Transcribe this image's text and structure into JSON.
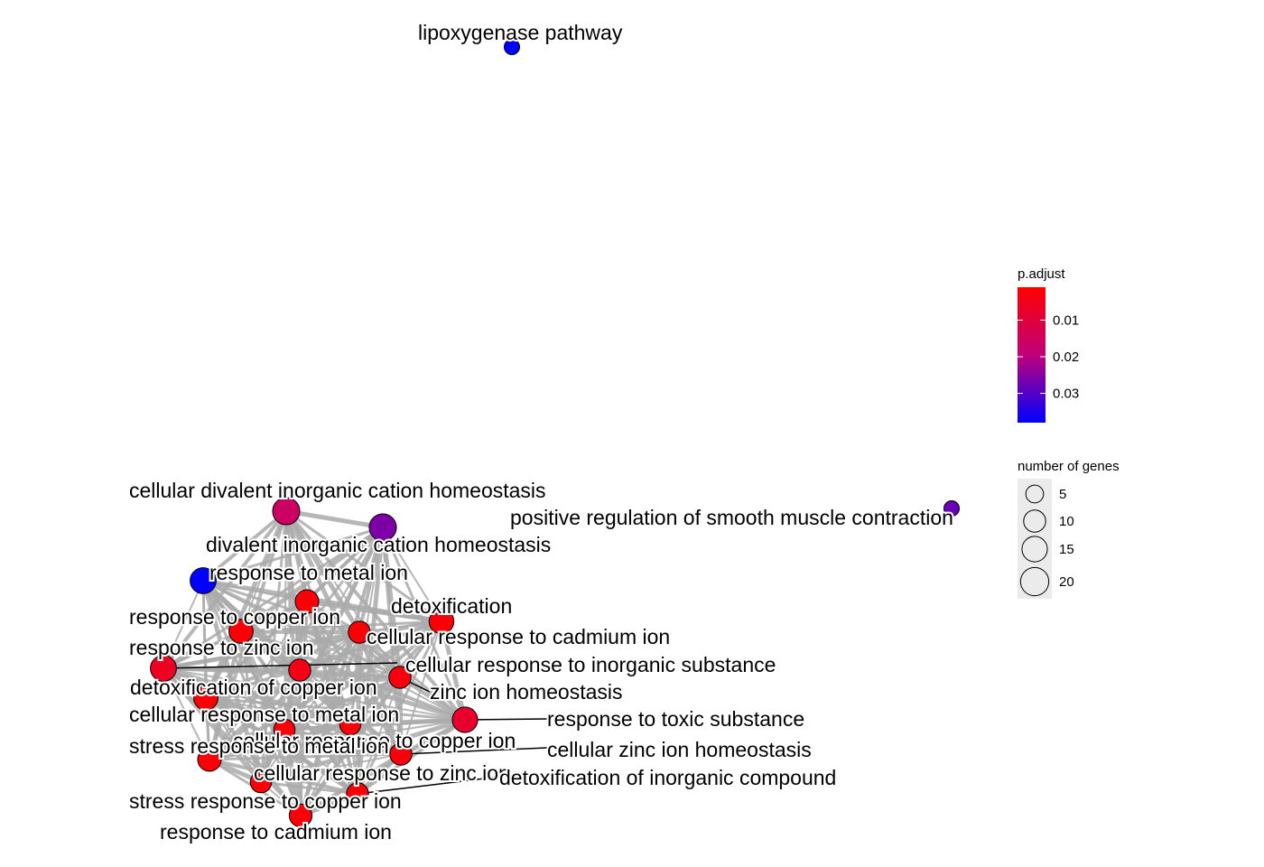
{
  "network": {
    "nodes": [
      {
        "id": "n1",
        "label": "lipoxygenase pathway",
        "p_adjust": 0.038,
        "genes": 3
      },
      {
        "id": "n2",
        "label": "positive regulation of smooth muscle contraction",
        "p_adjust": 0.028,
        "genes": 3
      },
      {
        "id": "n3",
        "label": "cellular divalent inorganic cation homeostasis",
        "p_adjust": 0.016,
        "genes": 18
      },
      {
        "id": "n4",
        "label": "divalent inorganic cation homeostasis",
        "p_adjust": 0.026,
        "genes": 18
      },
      {
        "id": "n5",
        "label": "response to metal ion",
        "p_adjust": 0.038,
        "genes": 16
      },
      {
        "id": "n6",
        "label": "detoxification",
        "p_adjust": 0.002,
        "genes": 14
      },
      {
        "id": "n7",
        "label": "response to copper ion",
        "p_adjust": 0.002,
        "genes": 13
      },
      {
        "id": "n8",
        "label": "cellular response to cadmium ion",
        "p_adjust": 0.002,
        "genes": 10
      },
      {
        "id": "n9",
        "label": "response to zinc ion",
        "p_adjust": 0.006,
        "genes": 16
      },
      {
        "id": "n10",
        "label": "cellular response to inorganic substance",
        "p_adjust": 0.004,
        "genes": 10
      },
      {
        "id": "n11",
        "label": "zinc ion homeostasis",
        "p_adjust": 0.003,
        "genes": 10
      },
      {
        "id": "n12",
        "label": "detoxification of copper ion",
        "p_adjust": 0.002,
        "genes": 13
      },
      {
        "id": "n13",
        "label": "response to toxic substance",
        "p_adjust": 0.008,
        "genes": 15
      },
      {
        "id": "n14",
        "label": "cellular response to metal ion",
        "p_adjust": 0.002,
        "genes": 9
      },
      {
        "id": "n15",
        "label": "cellular response to copper ion",
        "p_adjust": 0.002,
        "genes": 9
      },
      {
        "id": "n16",
        "label": "cellular zinc ion homeostasis",
        "p_adjust": 0.003,
        "genes": 10
      },
      {
        "id": "n17",
        "label": "stress response to metal ion",
        "p_adjust": 0.002,
        "genes": 12
      },
      {
        "id": "n18",
        "label": "cellular response to zinc ion",
        "p_adjust": 0.002,
        "genes": 9
      },
      {
        "id": "n19",
        "label": "detoxification of inorganic compound",
        "p_adjust": 0.002,
        "genes": 10
      },
      {
        "id": "n20",
        "label": "stress response to copper ion",
        "p_adjust": 0.002,
        "genes": 11
      },
      {
        "id": "n21",
        "label": "response to cadmium ion",
        "p_adjust": 0.002,
        "genes": 12
      }
    ],
    "edge_color": "#aaaaaa"
  },
  "legend": {
    "color": {
      "title": "p.adjust",
      "ticks": [
        {
          "label": "0.01",
          "value": 0.01
        },
        {
          "label": "0.02",
          "value": 0.02
        },
        {
          "label": "0.03",
          "value": 0.03
        }
      ],
      "range": [
        0.001,
        0.038
      ],
      "low_color": "#ff0000",
      "high_color": "#0000ff"
    },
    "size": {
      "title": "number of genes",
      "entries": [
        {
          "label": "5",
          "value": 5
        },
        {
          "label": "10",
          "value": 10
        },
        {
          "label": "15",
          "value": 15
        },
        {
          "label": "20",
          "value": 20
        }
      ]
    }
  }
}
